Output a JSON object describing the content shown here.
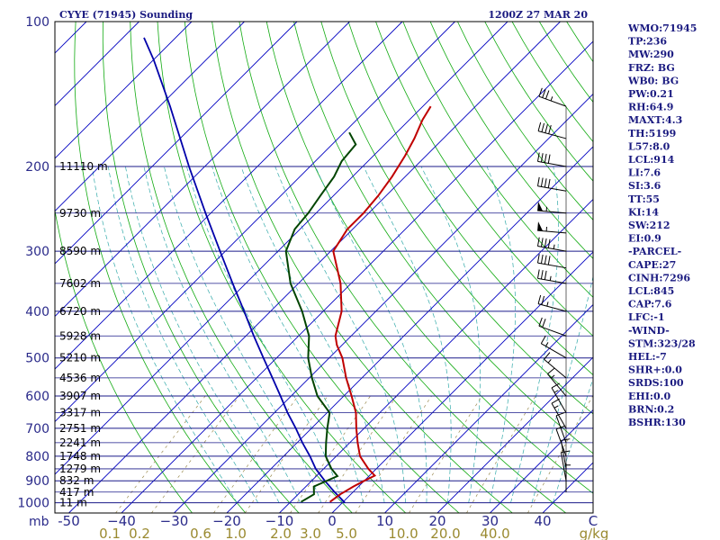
{
  "header": {
    "station": "CYYE (71945) Sounding",
    "time": "1200Z 27 MAR 20"
  },
  "colors": {
    "isobar": "#1a1a8a",
    "isotherm": "#0000c0",
    "dry_adiabat": "#11aa11",
    "moist_adiabat": "#33aaaa",
    "mixing_ratio": "#9a8a50",
    "temperature": "#c00000",
    "dewpoint": "#004400",
    "parcel": "#0000aa",
    "wind": "#000000"
  },
  "chart_data": {
    "type": "skew-t",
    "pressure_ticks": [
      100,
      200,
      300,
      400,
      500,
      600,
      700,
      800,
      900,
      1000
    ],
    "pressure_unit_label": "mb",
    "temperature_ticks": [
      -50,
      -40,
      -30,
      -20,
      -10,
      0,
      10,
      20,
      30,
      40
    ],
    "temperature_tick_labels": [
      "-50",
      "−40",
      "−30",
      "−20",
      "−10",
      "0",
      "10",
      "20",
      "30",
      "40"
    ],
    "mixing_ratio_labels": [
      "0.1",
      "0.2",
      "0.6",
      "1.0",
      "2.0",
      "3.0",
      "5.0",
      "10.0",
      "20.0",
      "40.0",
      "g/kg"
    ],
    "mixing_ratio_values": [
      0.1,
      0.2,
      0.6,
      1.0,
      2.0,
      3.0,
      5.0,
      10.0,
      20.0,
      40.0
    ],
    "wind_axis_label": "C",
    "height_labels": [
      {
        "text": "11110 m",
        "p": 200
      },
      {
        "text": "9730 m",
        "p": 250
      },
      {
        "text": "8590 m",
        "p": 300
      },
      {
        "text": "7602 m",
        "p": 350
      },
      {
        "text": "6720 m",
        "p": 400
      },
      {
        "text": "5928 m",
        "p": 450
      },
      {
        "text": "5210 m",
        "p": 500
      },
      {
        "text": "4536 m",
        "p": 550
      },
      {
        "text": "3907 m",
        "p": 600
      },
      {
        "text": "3317 m",
        "p": 650
      },
      {
        "text": "2751 m",
        "p": 700
      },
      {
        "text": "2241 m",
        "p": 750
      },
      {
        "text": "1748 m",
        "p": 800
      },
      {
        "text": "1279 m",
        "p": 850
      },
      {
        "text": "832 m",
        "p": 900
      },
      {
        "text": "417 m",
        "p": 950
      },
      {
        "text": "11 m",
        "p": 1000
      }
    ],
    "temperature_profile": [
      {
        "p": 996,
        "t": -2.5
      },
      {
        "p": 960,
        "t": -2.0
      },
      {
        "p": 925,
        "t": -1.0
      },
      {
        "p": 900,
        "t": 0.0
      },
      {
        "p": 878,
        "t": 1.0
      },
      {
        "p": 850,
        "t": -1.5
      },
      {
        "p": 800,
        "t": -5.5
      },
      {
        "p": 750,
        "t": -8.5
      },
      {
        "p": 700,
        "t": -11.5
      },
      {
        "p": 650,
        "t": -14.5
      },
      {
        "p": 600,
        "t": -18.5
      },
      {
        "p": 550,
        "t": -23.0
      },
      {
        "p": 500,
        "t": -27.5
      },
      {
        "p": 470,
        "t": -31.0
      },
      {
        "p": 450,
        "t": -33.0
      },
      {
        "p": 400,
        "t": -36.5
      },
      {
        "p": 350,
        "t": -42.0
      },
      {
        "p": 300,
        "t": -49.5
      },
      {
        "p": 270,
        "t": -51.0
      },
      {
        "p": 250,
        "t": -51.0
      },
      {
        "p": 230,
        "t": -51.5
      },
      {
        "p": 210,
        "t": -52.5
      },
      {
        "p": 190,
        "t": -54.0
      },
      {
        "p": 175,
        "t": -55.5
      },
      {
        "p": 160,
        "t": -57.5
      },
      {
        "p": 150,
        "t": -58.5
      }
    ],
    "dewpoint_profile": [
      {
        "p": 996,
        "t": -8.0
      },
      {
        "p": 960,
        "t": -7.0
      },
      {
        "p": 925,
        "t": -8.5
      },
      {
        "p": 880,
        "t": -6.0
      },
      {
        "p": 850,
        "t": -8.5
      },
      {
        "p": 800,
        "t": -12.0
      },
      {
        "p": 750,
        "t": -14.5
      },
      {
        "p": 700,
        "t": -17.0
      },
      {
        "p": 650,
        "t": -19.5
      },
      {
        "p": 600,
        "t": -25.0
      },
      {
        "p": 550,
        "t": -29.5
      },
      {
        "p": 500,
        "t": -34.0
      },
      {
        "p": 450,
        "t": -38.0
      },
      {
        "p": 400,
        "t": -44.0
      },
      {
        "p": 350,
        "t": -51.5
      },
      {
        "p": 300,
        "t": -58.5
      },
      {
        "p": 270,
        "t": -61.0
      },
      {
        "p": 250,
        "t": -61.5
      },
      {
        "p": 230,
        "t": -62.5
      },
      {
        "p": 210,
        "t": -63.5
      },
      {
        "p": 195,
        "t": -65.0
      },
      {
        "p": 180,
        "t": -65.5
      },
      {
        "p": 170,
        "t": -69.0
      }
    ],
    "parcel_profile": [
      {
        "p": 1000,
        "t": 0.5
      },
      {
        "p": 950,
        "t": -3.5
      },
      {
        "p": 900,
        "t": -7.5
      },
      {
        "p": 850,
        "t": -11.5
      },
      {
        "p": 800,
        "t": -15.0
      },
      {
        "p": 750,
        "t": -19.0
      },
      {
        "p": 700,
        "t": -23.0
      },
      {
        "p": 650,
        "t": -27.5
      },
      {
        "p": 600,
        "t": -32.0
      },
      {
        "p": 550,
        "t": -37.0
      },
      {
        "p": 500,
        "t": -42.5
      },
      {
        "p": 450,
        "t": -48.5
      },
      {
        "p": 400,
        "t": -55.0
      },
      {
        "p": 350,
        "t": -62.5
      },
      {
        "p": 300,
        "t": -71.0
      },
      {
        "p": 250,
        "t": -81.0
      },
      {
        "p": 200,
        "t": -93.0
      },
      {
        "p": 150,
        "t": -108.0
      },
      {
        "p": 120,
        "t": -120.0
      },
      {
        "p": 108,
        "t": -126.0
      }
    ],
    "wind_profile": [
      {
        "p": 150,
        "dir": 290,
        "spd": 35
      },
      {
        "p": 175,
        "dir": 285,
        "spd": 40
      },
      {
        "p": 200,
        "dir": 280,
        "spd": 40
      },
      {
        "p": 225,
        "dir": 280,
        "spd": 40
      },
      {
        "p": 250,
        "dir": 275,
        "spd": 55
      },
      {
        "p": 275,
        "dir": 275,
        "spd": 55
      },
      {
        "p": 300,
        "dir": 280,
        "spd": 45
      },
      {
        "p": 325,
        "dir": 280,
        "spd": 40
      },
      {
        "p": 350,
        "dir": 280,
        "spd": 35
      },
      {
        "p": 400,
        "dir": 285,
        "spd": 25
      },
      {
        "p": 450,
        "dir": 290,
        "spd": 20
      },
      {
        "p": 500,
        "dir": 300,
        "spd": 15
      },
      {
        "p": 550,
        "dir": 310,
        "spd": 15
      },
      {
        "p": 600,
        "dir": 320,
        "spd": 15
      },
      {
        "p": 650,
        "dir": 330,
        "spd": 15
      },
      {
        "p": 700,
        "dir": 330,
        "spd": 15
      },
      {
        "p": 750,
        "dir": 340,
        "spd": 10
      },
      {
        "p": 800,
        "dir": 340,
        "spd": 10
      },
      {
        "p": 850,
        "dir": 350,
        "spd": 10
      },
      {
        "p": 900,
        "dir": 350,
        "spd": 10
      },
      {
        "p": 950,
        "dir": 0,
        "spd": 5
      }
    ]
  },
  "indices": [
    "WMO:71945",
    "TP:236",
    "MW:290",
    "FRZ: BG",
    "WB0: BG",
    "PW:0.21",
    "RH:64.9",
    "MAXT:4.3",
    "TH:5199",
    "L57:8.0",
    "LCL:914",
    "LI:7.6",
    "SI:3.6",
    "TT:55",
    "KI:14",
    "SW:212",
    "EI:0.9",
    "-PARCEL-",
    "CAPE:27",
    "CINH:7296",
    "LCL:845",
    "CAP:7.6",
    "LFC:-1",
    "-WIND-",
    "STM:323/28",
    "HEL:-7",
    "SHR+:0.0",
    "SRDS:100",
    "EHI:0.0",
    "BRN:0.2",
    "BSHR:130"
  ]
}
